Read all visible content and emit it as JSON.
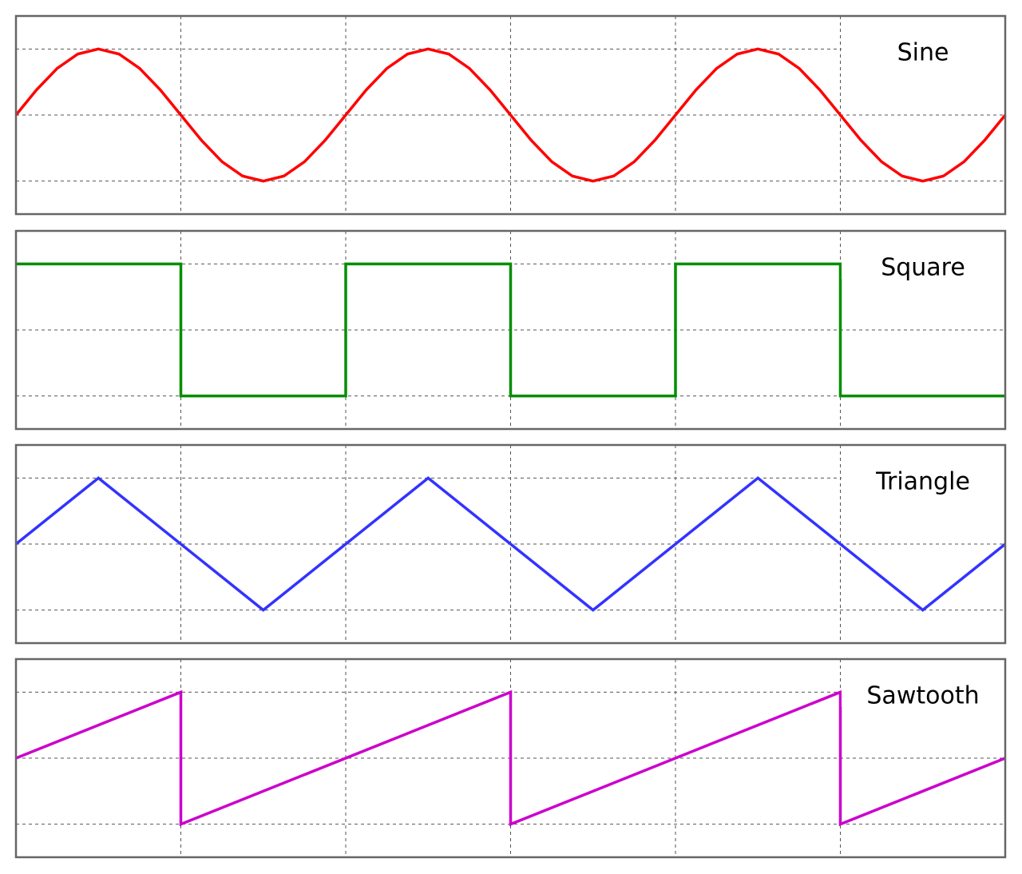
{
  "chart_data": [
    {
      "type": "line",
      "title": "Sine",
      "color": "#ff0000",
      "x": [
        0,
        0.125,
        0.25,
        0.375,
        0.5,
        0.625,
        0.75,
        0.875,
        1,
        1.125,
        1.25,
        1.375,
        1.5,
        1.625,
        1.75,
        1.875,
        2,
        2.125,
        2.25,
        2.375,
        2.5,
        2.625,
        2.75,
        2.875,
        3,
        3.125,
        3.25,
        3.375,
        3.5,
        3.625,
        3.75,
        3.875,
        4,
        4.125,
        4.25,
        4.375,
        4.5,
        4.625,
        4.75,
        4.875,
        5,
        5.125,
        5.25,
        5.375,
        5.5,
        5.625,
        5.75,
        5.875,
        6
      ],
      "values": [
        0,
        0.3827,
        0.7071,
        0.9239,
        1,
        0.9239,
        0.7071,
        0.3827,
        0,
        -0.3827,
        -0.7071,
        -0.9239,
        -1,
        -0.9239,
        -0.7071,
        -0.3827,
        0,
        0.3827,
        0.7071,
        0.9239,
        1,
        0.9239,
        0.7071,
        0.3827,
        0,
        -0.3827,
        -0.7071,
        -0.9239,
        -1,
        -0.9239,
        -0.7071,
        -0.3827,
        0,
        0.3827,
        0.7071,
        0.9239,
        1,
        0.9239,
        0.7071,
        0.3827,
        0,
        -0.3827,
        -0.7071,
        -0.9239,
        -1,
        -0.9239,
        -0.7071,
        -0.3827,
        0
      ],
      "xlim": [
        0,
        6
      ],
      "xticks": [
        1,
        2,
        3,
        4,
        5
      ],
      "ylim": [
        -1.5,
        1.5
      ],
      "yticks": [
        -1,
        0,
        1
      ],
      "grid": true
    },
    {
      "type": "line",
      "title": "Square",
      "color": "#008f00",
      "x": [
        0,
        1,
        1,
        2,
        2,
        3,
        3,
        4,
        4,
        5,
        5,
        6
      ],
      "values": [
        1,
        1,
        -1,
        -1,
        1,
        1,
        -1,
        -1,
        1,
        1,
        -1,
        -1
      ],
      "xlim": [
        0,
        6
      ],
      "xticks": [
        1,
        2,
        3,
        4,
        5
      ],
      "ylim": [
        -1.5,
        1.5
      ],
      "yticks": [
        -1,
        0,
        1
      ],
      "grid": true
    },
    {
      "type": "line",
      "title": "Triangle",
      "color": "#3333ff",
      "x": [
        0,
        0.5,
        1.5,
        2.5,
        3.5,
        4.5,
        5.5,
        6
      ],
      "values": [
        0,
        1,
        -1,
        1,
        -1,
        1,
        -1,
        0
      ],
      "xlim": [
        0,
        6
      ],
      "xticks": [
        1,
        2,
        3,
        4,
        5
      ],
      "ylim": [
        -1.5,
        1.5
      ],
      "yticks": [
        -1,
        0,
        1
      ],
      "grid": true
    },
    {
      "type": "line",
      "title": "Sawtooth",
      "color": "#cc00cc",
      "x": [
        0,
        1,
        1,
        3,
        3,
        5,
        5,
        6
      ],
      "values": [
        0,
        1,
        -1,
        1,
        -1,
        1,
        -1,
        0
      ],
      "xlim": [
        0,
        6
      ],
      "xticks": [
        1,
        2,
        3,
        4,
        5
      ],
      "ylim": [
        -1.5,
        1.5
      ],
      "yticks": [
        -1,
        0,
        1
      ],
      "grid": true
    }
  ]
}
